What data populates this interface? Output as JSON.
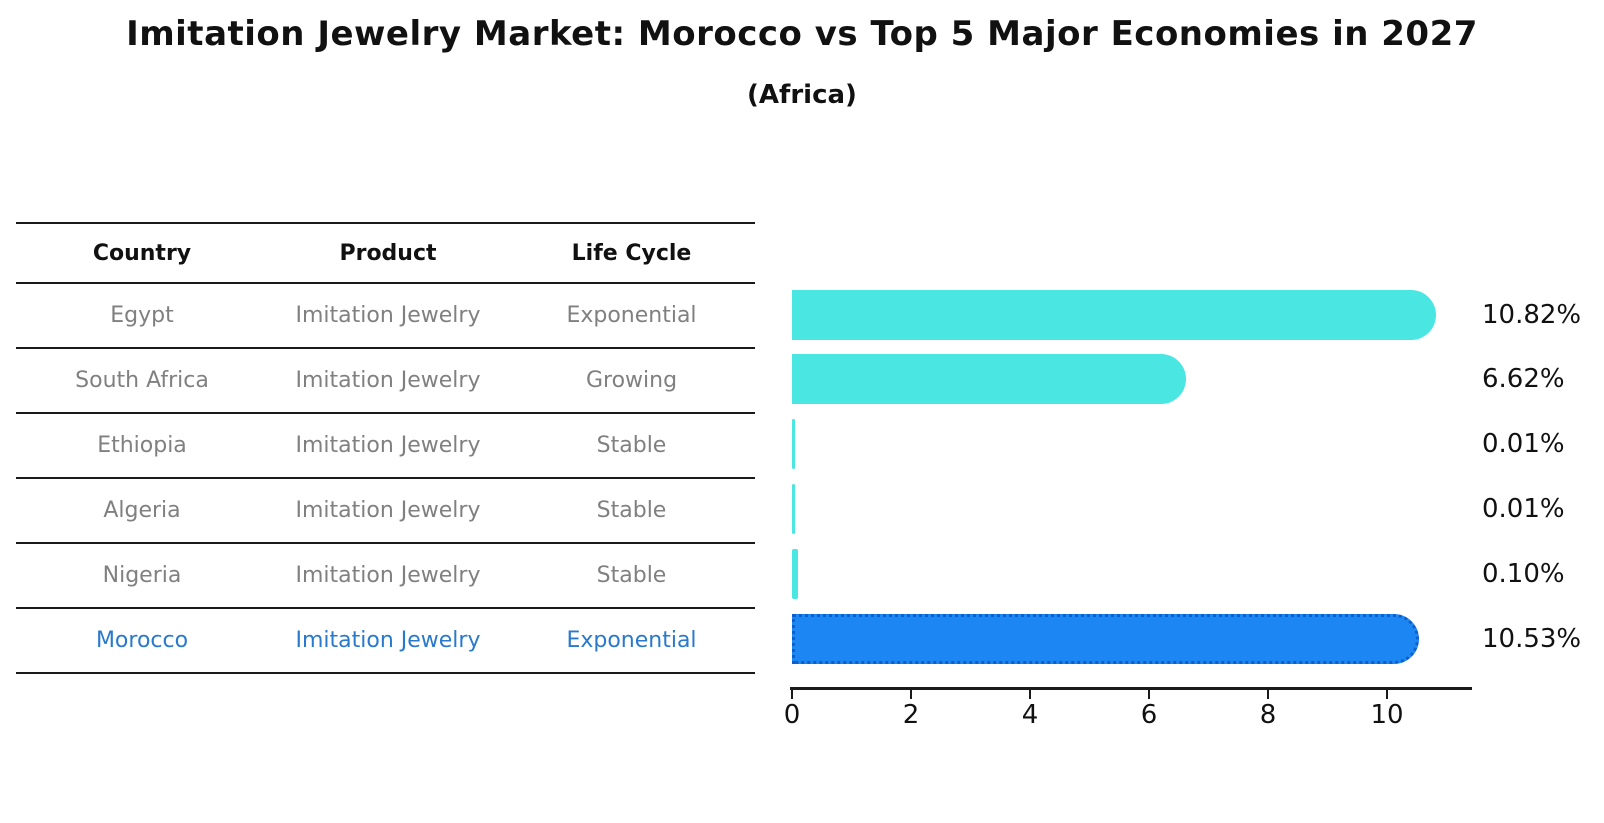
{
  "title": "Imitation Jewelry Market: Morocco vs Top 5 Major Economies in 2027",
  "subtitle": "(Africa)",
  "table": {
    "headers": [
      "Country",
      "Product",
      "Life Cycle"
    ],
    "rows": [
      {
        "country": "Egypt",
        "product": "Imitation Jewelry",
        "life_cycle": "Exponential",
        "highlighted": false
      },
      {
        "country": "South Africa",
        "product": "Imitation Jewelry",
        "life_cycle": "Growing",
        "highlighted": false
      },
      {
        "country": "Ethiopia",
        "product": "Imitation Jewelry",
        "life_cycle": "Stable",
        "highlighted": false
      },
      {
        "country": "Algeria",
        "product": "Imitation Jewelry",
        "life_cycle": "Stable",
        "highlighted": false
      },
      {
        "country": "Nigeria",
        "product": "Imitation Jewelry",
        "life_cycle": "Stable",
        "highlighted": false
      },
      {
        "country": "Morocco",
        "product": "Imitation Jewelry",
        "life_cycle": "Exponential",
        "highlighted": true
      }
    ]
  },
  "chart_data": {
    "type": "bar",
    "orientation": "horizontal",
    "title": "Imitation Jewelry Market: Morocco vs Top 5 Major Economies in 2027 (Africa)",
    "xlabel": "",
    "ylabel": "",
    "categories": [
      "Egypt",
      "South Africa",
      "Ethiopia",
      "Algeria",
      "Nigeria",
      "Morocco"
    ],
    "values": [
      10.82,
      6.62,
      0.01,
      0.01,
      0.1,
      10.53
    ],
    "value_labels": [
      "10.82%",
      "6.62%",
      "0.01%",
      "0.01%",
      "0.10%",
      "10.53%"
    ],
    "x_ticks": [
      0,
      2,
      4,
      6,
      8,
      10
    ],
    "xlim": [
      0,
      11.4
    ],
    "grid": false,
    "legend": "none",
    "bar_color": "#4AE6E2",
    "highlight_bar_color": "#1C87F2",
    "highlight_border_color": "#0D5FCC",
    "highlight_index": 5
  },
  "colors": {
    "highlight_text": "#2979CC",
    "body_text": "#808080",
    "axis": "#1a1a1a"
  }
}
